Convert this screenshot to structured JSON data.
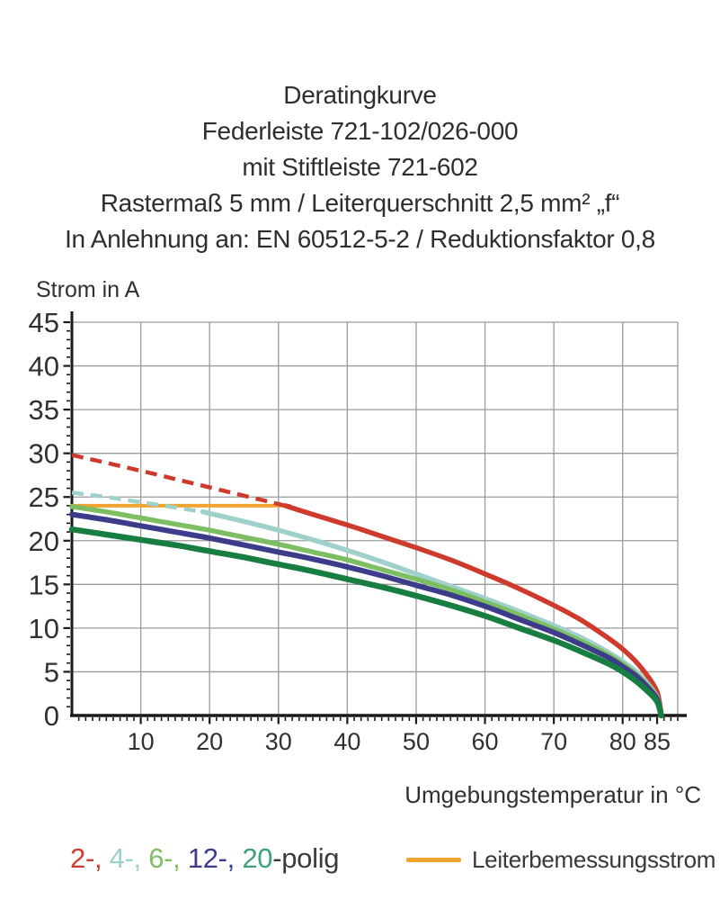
{
  "title": {
    "lines": [
      "Deratingkurve",
      "Federleiste 721-102/026-000",
      "mit Stiftleiste 721-602",
      "Rastermaß 5 mm / Leiterquerschnitt 2,5 mm² „f“",
      "In Anlehnung an: EN 60512-5-2 / Reduktionsfaktor 0,8"
    ]
  },
  "chart_data": {
    "type": "line",
    "title": "Deratingkurve Federleiste 721-102/026-000 mit Stiftleiste 721-602",
    "xlabel": "Umgebungstemperatur in °C",
    "ylabel": "Strom in A",
    "xlim": [
      0,
      88
    ],
    "ylim": [
      0,
      45
    ],
    "grid": true,
    "x_ticks": [
      10,
      20,
      30,
      40,
      50,
      60,
      70,
      80,
      85
    ],
    "y_ticks": [
      0,
      5,
      10,
      15,
      20,
      25,
      30,
      35,
      40,
      45
    ],
    "x_gridlines": [
      10,
      20,
      30,
      40,
      50,
      60,
      70,
      80,
      88
    ],
    "y_gridlines": [
      5,
      10,
      15,
      20,
      25,
      30,
      35,
      40,
      45
    ],
    "minor_tick_step_x": 1,
    "minor_tick_step_y": 1,
    "colors": {
      "grid": "#9b9b9b",
      "axis": "#1a1a1a",
      "text": "#303030"
    },
    "series": [
      {
        "name": "2-polig",
        "color": "#ce3b2c",
        "width": 5.5,
        "dashed_points": [
          [
            0,
            29.8
          ],
          [
            10,
            28.0
          ],
          [
            20,
            26.1
          ],
          [
            31,
            24.0
          ]
        ],
        "points": [
          [
            31,
            24.0
          ],
          [
            35,
            23.0
          ],
          [
            40,
            21.8
          ],
          [
            45,
            20.5
          ],
          [
            50,
            19.2
          ],
          [
            55,
            17.8
          ],
          [
            60,
            16.2
          ],
          [
            65,
            14.5
          ],
          [
            70,
            12.6
          ],
          [
            74,
            10.9
          ],
          [
            78,
            8.8
          ],
          [
            80,
            7.6
          ],
          [
            82,
            6.1
          ],
          [
            84,
            4.1
          ],
          [
            85,
            2.7
          ],
          [
            85.4,
            1.3
          ],
          [
            85.6,
            0
          ]
        ]
      },
      {
        "name": "4-polig",
        "color": "#9ed1cb",
        "width": 5.5,
        "dashed_points": [
          [
            0,
            25.5
          ],
          [
            5,
            25.0
          ],
          [
            10,
            24.4
          ],
          [
            15,
            23.8
          ],
          [
            19,
            23.3
          ]
        ],
        "points": [
          [
            19,
            23.3
          ],
          [
            25,
            22.2
          ],
          [
            30,
            21.2
          ],
          [
            35,
            20.1
          ],
          [
            40,
            18.9
          ],
          [
            45,
            17.6
          ],
          [
            50,
            16.2
          ],
          [
            55,
            14.8
          ],
          [
            60,
            13.4
          ],
          [
            65,
            11.9
          ],
          [
            70,
            10.3
          ],
          [
            74,
            8.9
          ],
          [
            78,
            7.2
          ],
          [
            80,
            6.2
          ],
          [
            82,
            5.0
          ],
          [
            84,
            3.3
          ],
          [
            85,
            2.1
          ],
          [
            85.4,
            1.0
          ],
          [
            85.6,
            0
          ]
        ]
      },
      {
        "name": "6-polig",
        "color": "#7dbe62",
        "width": 5.5,
        "dashed_points": [],
        "points": [
          [
            0,
            23.9
          ],
          [
            5,
            23.3
          ],
          [
            10,
            22.6
          ],
          [
            15,
            21.9
          ],
          [
            20,
            21.2
          ],
          [
            25,
            20.4
          ],
          [
            30,
            19.6
          ],
          [
            35,
            18.7
          ],
          [
            40,
            17.8
          ],
          [
            45,
            16.7
          ],
          [
            50,
            15.6
          ],
          [
            55,
            14.4
          ],
          [
            60,
            13.0
          ],
          [
            65,
            11.5
          ],
          [
            70,
            9.9
          ],
          [
            74,
            8.5
          ],
          [
            78,
            6.9
          ],
          [
            80,
            5.9
          ],
          [
            82,
            4.7
          ],
          [
            84,
            3.1
          ],
          [
            85,
            2.0
          ],
          [
            85.4,
            0.9
          ],
          [
            85.6,
            0
          ]
        ]
      },
      {
        "name": "12-polig",
        "color": "#3d3c8a",
        "width": 6,
        "dashed_points": [],
        "points": [
          [
            0,
            23.0
          ],
          [
            5,
            22.4
          ],
          [
            10,
            21.7
          ],
          [
            15,
            21.0
          ],
          [
            20,
            20.3
          ],
          [
            25,
            19.5
          ],
          [
            30,
            18.7
          ],
          [
            35,
            17.9
          ],
          [
            40,
            17.0
          ],
          [
            45,
            16.0
          ],
          [
            50,
            14.9
          ],
          [
            55,
            13.8
          ],
          [
            60,
            12.5
          ],
          [
            65,
            11.0
          ],
          [
            70,
            9.5
          ],
          [
            74,
            8.1
          ],
          [
            78,
            6.6
          ],
          [
            80,
            5.6
          ],
          [
            82,
            4.5
          ],
          [
            84,
            2.9
          ],
          [
            85,
            1.9
          ],
          [
            85.4,
            0.8
          ],
          [
            85.6,
            0
          ]
        ]
      },
      {
        "name": "20-polig",
        "color": "#177d40",
        "width": 6.5,
        "dashed_points": [],
        "points": [
          [
            0,
            21.3
          ],
          [
            5,
            20.7
          ],
          [
            10,
            20.1
          ],
          [
            15,
            19.5
          ],
          [
            20,
            18.8
          ],
          [
            25,
            18.1
          ],
          [
            30,
            17.3
          ],
          [
            35,
            16.5
          ],
          [
            40,
            15.6
          ],
          [
            45,
            14.7
          ],
          [
            50,
            13.7
          ],
          [
            55,
            12.6
          ],
          [
            60,
            11.4
          ],
          [
            65,
            10.0
          ],
          [
            70,
            8.6
          ],
          [
            74,
            7.3
          ],
          [
            78,
            5.9
          ],
          [
            80,
            5.0
          ],
          [
            82,
            3.9
          ],
          [
            84,
            2.5
          ],
          [
            85,
            1.6
          ],
          [
            85.4,
            0.7
          ],
          [
            85.6,
            0
          ]
        ]
      }
    ],
    "reference_line": {
      "name": "Leiterbemessungsstrom",
      "color": "#f0a32e",
      "value": 24,
      "x_start": 0,
      "x_end": 31.6,
      "width": 4
    }
  },
  "axis_labels": {
    "y": "Strom in A",
    "x": "Umgebungstemperatur in °C"
  },
  "legend": {
    "pole_parts": [
      {
        "text": "2-, ",
        "color": "#ce3b2c"
      },
      {
        "text": "4-, ",
        "color": "#9ed1cb"
      },
      {
        "text": "6-, ",
        "color": "#7dbe62"
      },
      {
        "text": "12-, ",
        "color": "#3d3c8a"
      },
      {
        "text": "20",
        "color": "#3aa37c"
      },
      {
        "text": "-polig",
        "color": "#3a3a3a"
      }
    ],
    "reference": {
      "label": "Leiterbemessungsstrom",
      "color": "#f0a32e"
    }
  }
}
